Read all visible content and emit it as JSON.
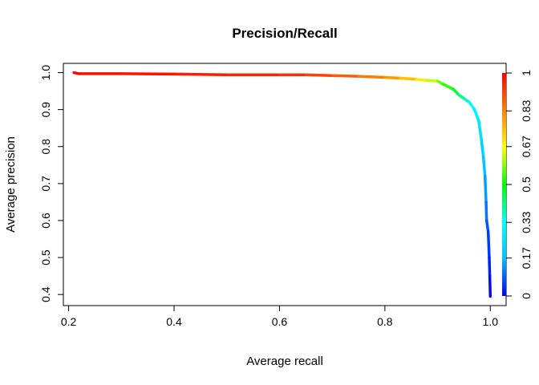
{
  "chart_data": {
    "type": "line",
    "title": "Precision/Recall",
    "xlabel": "Average recall",
    "ylabel": "Average precision",
    "xlim": [
      0.19,
      1.03
    ],
    "ylim": [
      0.37,
      1.025
    ],
    "x_ticks": [
      0.2,
      0.4,
      0.6,
      0.8,
      1.0
    ],
    "x_tick_labels": [
      "0.2",
      "0.4",
      "0.6",
      "0.8",
      "1.0"
    ],
    "y_ticks": [
      0.4,
      0.5,
      0.6,
      0.7,
      0.8,
      0.9,
      1.0
    ],
    "y_tick_labels": [
      "0.4",
      "0.5",
      "0.6",
      "0.7",
      "0.8",
      "0.9",
      "1.0"
    ],
    "grid": false,
    "color_scale": "rainbow (blue to red)",
    "series": [
      {
        "points": [
          {
            "x": 0.21,
            "y": 1.0,
            "t": 1.0
          },
          {
            "x": 0.22,
            "y": 0.997,
            "t": 0.99
          },
          {
            "x": 0.3,
            "y": 0.997,
            "t": 0.98
          },
          {
            "x": 0.4,
            "y": 0.996,
            "t": 0.97
          },
          {
            "x": 0.5,
            "y": 0.994,
            "t": 0.96
          },
          {
            "x": 0.6,
            "y": 0.994,
            "t": 0.95
          },
          {
            "x": 0.65,
            "y": 0.994,
            "t": 0.93
          },
          {
            "x": 0.7,
            "y": 0.992,
            "t": 0.9
          },
          {
            "x": 0.75,
            "y": 0.99,
            "t": 0.86
          },
          {
            "x": 0.8,
            "y": 0.987,
            "t": 0.82
          },
          {
            "x": 0.83,
            "y": 0.985,
            "t": 0.78
          },
          {
            "x": 0.86,
            "y": 0.982,
            "t": 0.72
          },
          {
            "x": 0.88,
            "y": 0.979,
            "t": 0.66
          },
          {
            "x": 0.9,
            "y": 0.977,
            "t": 0.6
          },
          {
            "x": 0.91,
            "y": 0.969,
            "t": 0.55
          },
          {
            "x": 0.93,
            "y": 0.955,
            "t": 0.5
          },
          {
            "x": 0.94,
            "y": 0.94,
            "t": 0.44
          },
          {
            "x": 0.95,
            "y": 0.93,
            "t": 0.4
          },
          {
            "x": 0.96,
            "y": 0.92,
            "t": 0.36
          },
          {
            "x": 0.97,
            "y": 0.9,
            "t": 0.32
          },
          {
            "x": 0.978,
            "y": 0.87,
            "t": 0.28
          },
          {
            "x": 0.983,
            "y": 0.82,
            "t": 0.24
          },
          {
            "x": 0.987,
            "y": 0.77,
            "t": 0.2
          },
          {
            "x": 0.99,
            "y": 0.72,
            "t": 0.16
          },
          {
            "x": 0.992,
            "y": 0.65,
            "t": 0.12
          },
          {
            "x": 0.993,
            "y": 0.6,
            "t": 0.09
          },
          {
            "x": 0.996,
            "y": 0.57,
            "t": 0.06
          },
          {
            "x": 0.998,
            "y": 0.5,
            "t": 0.04
          },
          {
            "x": 0.999,
            "y": 0.45,
            "t": 0.02
          },
          {
            "x": 1.0,
            "y": 0.395,
            "t": 0.0
          }
        ]
      }
    ],
    "colorbar": {
      "range": [
        0,
        1
      ],
      "tick_values": [
        0,
        0.17,
        0.33,
        0.5,
        0.67,
        0.83,
        1
      ],
      "tick_labels": [
        "0",
        "0.17",
        "0.33",
        "0.5",
        "0.67",
        "0.83",
        "1"
      ],
      "colors": [
        "#0000ff",
        "#00bfff",
        "#00ffff",
        "#00ff00",
        "#ffff00",
        "#ff8000",
        "#ff0000"
      ]
    }
  }
}
